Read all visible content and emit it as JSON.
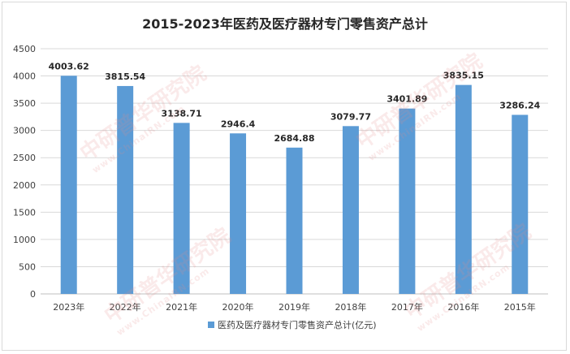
{
  "chart_data": {
    "type": "bar",
    "title": "2015-2023年医药及医疗器材专门零售资产总计",
    "categories": [
      "2023年",
      "2022年",
      "2021年",
      "2020年",
      "2019年",
      "2018年",
      "2017年",
      "2016年",
      "2015年"
    ],
    "series": [
      {
        "name": "医药及医疗器材专门零售资产总计(亿元)",
        "values": [
          4003.62,
          3815.54,
          3138.71,
          2946.4,
          2684.88,
          3079.77,
          3401.89,
          3835.15,
          3286.24
        ],
        "labels": [
          "4003.62",
          "3815.54",
          "3138.71",
          "2946.4",
          "2684.88",
          "3079.77",
          "3401.89",
          "3835.15",
          "3286.24"
        ],
        "color": "#5b9bd5"
      }
    ],
    "yticks": [
      "0",
      "500",
      "1000",
      "1500",
      "2000",
      "2500",
      "3000",
      "3500",
      "4000",
      "4500"
    ],
    "ylim": [
      0,
      4500
    ],
    "grid": true,
    "legend_position": "bottom"
  },
  "watermark": {
    "text": "中研普华研究院",
    "subtext": "www.ChinaIRN.com"
  }
}
